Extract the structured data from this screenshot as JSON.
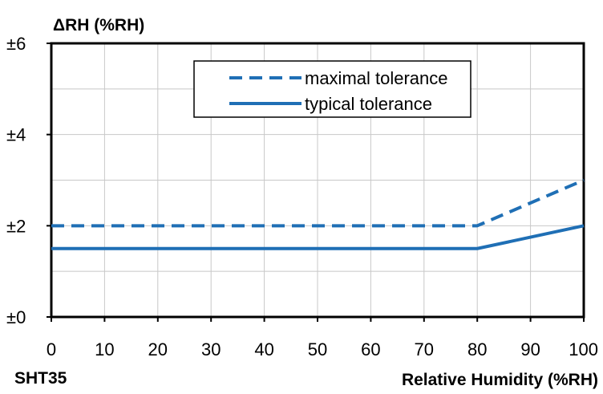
{
  "chart_data": {
    "type": "line",
    "title": "",
    "xlabel": "Relative Humidity (%RH)",
    "ylabel": "ΔRH (%RH)",
    "footer_label": "SHT35",
    "xlim": [
      0,
      100
    ],
    "ylim": [
      0,
      6
    ],
    "x_ticks": [
      0,
      10,
      20,
      30,
      40,
      50,
      60,
      70,
      80,
      90,
      100
    ],
    "x_tick_labels": [
      "0",
      "10",
      "20",
      "30",
      "40",
      "50",
      "60",
      "70",
      "80",
      "90",
      "100"
    ],
    "y_ticks": [
      0,
      2,
      4,
      6
    ],
    "y_tick_labels": [
      "±0",
      "±2",
      "±4",
      "±6"
    ],
    "grid": true,
    "legend_position": "top-right",
    "series_color": "#1f6fb5",
    "series": [
      {
        "name": "maximal tolerance",
        "style": "dashed",
        "x": [
          0,
          80,
          100
        ],
        "y": [
          2,
          2,
          3
        ]
      },
      {
        "name": "typical tolerance",
        "style": "solid",
        "x": [
          0,
          80,
          100
        ],
        "y": [
          1.5,
          1.5,
          2
        ]
      }
    ]
  }
}
